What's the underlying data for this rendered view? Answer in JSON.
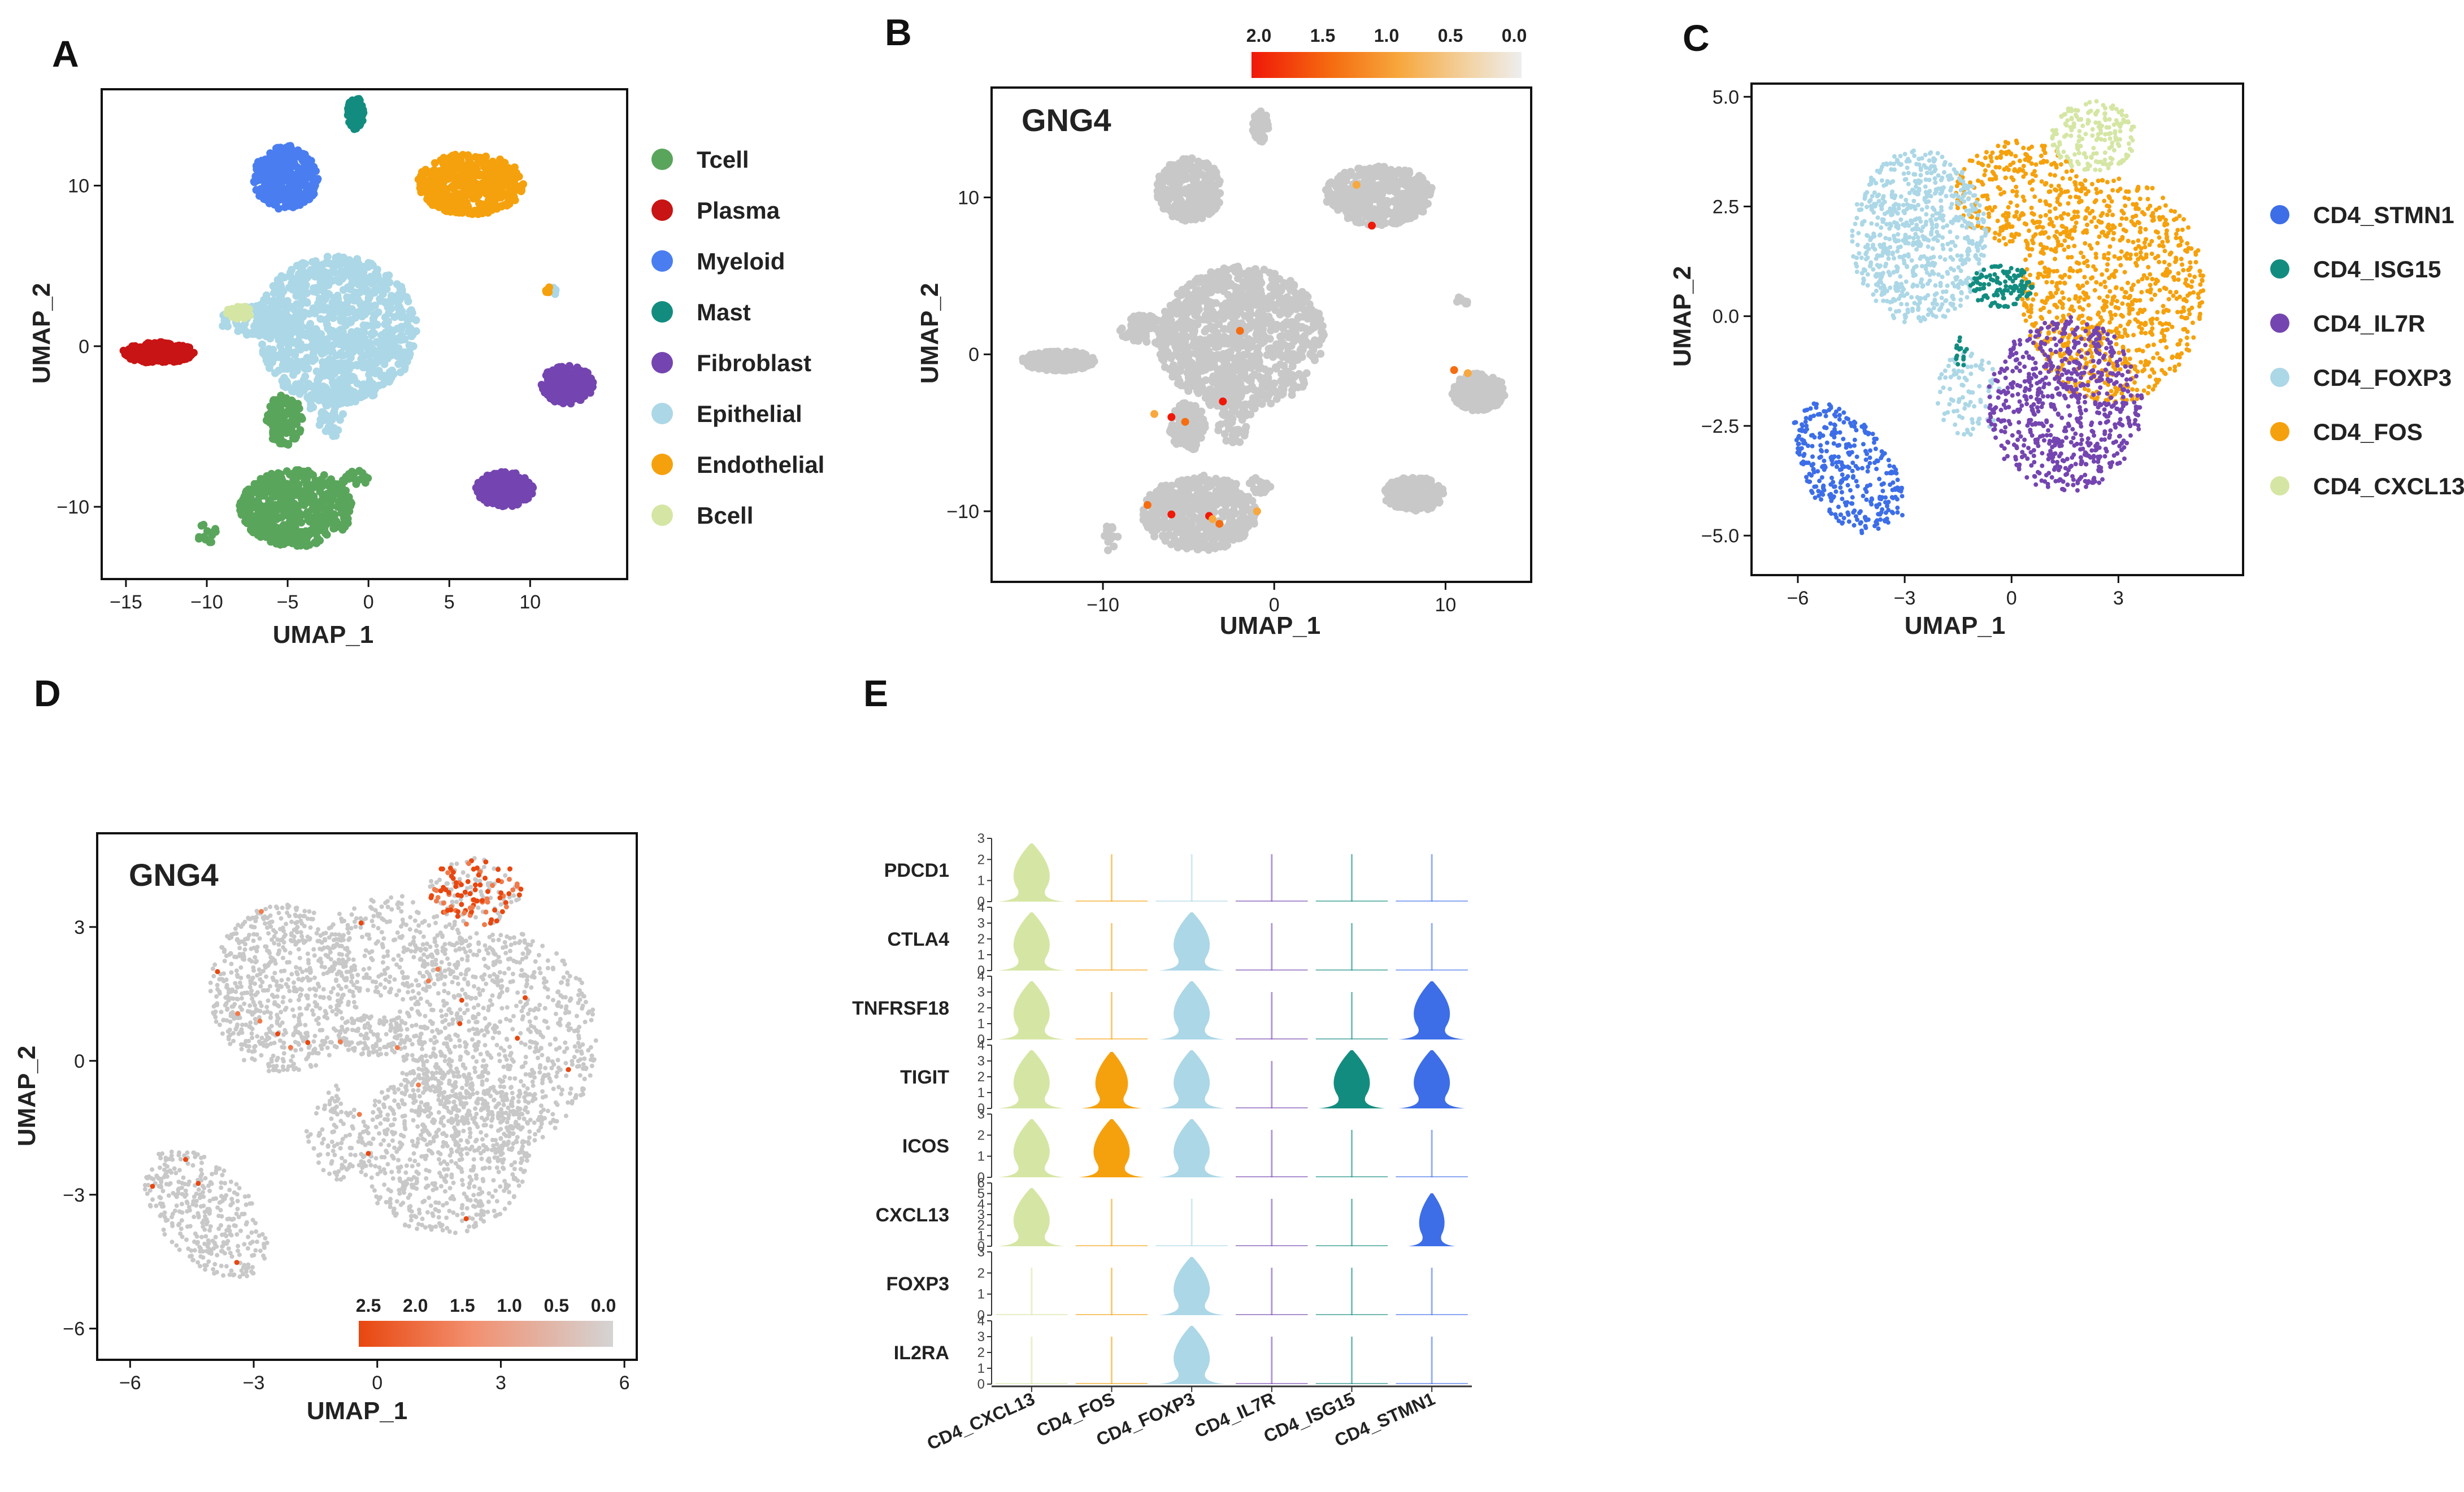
{
  "panel_labels": {
    "A": "A",
    "B": "B",
    "C": "C",
    "D": "D",
    "E": "E"
  },
  "colors": {
    "Tcell": "#5aa55c",
    "Plasma": "#c81414",
    "Myeloid": "#4a7ef0",
    "Mast": "#138c80",
    "Fibroblast": "#7445b0",
    "Epithelial": "#acd7e6",
    "Endothelial": "#f5a10d",
    "Bcell": "#d5e6a4",
    "CD4_STMN1": "#3d6ee8",
    "CD4_ISG15": "#138c80",
    "CD4_IL7R": "#7445b0",
    "CD4_FOXP3": "#acd7e6",
    "CD4_FOS": "#f5a10d",
    "CD4_CXCL13": "#d5e6a4",
    "grey": "#c8c8c8"
  },
  "chart_data": [
    {
      "id": "A",
      "type": "scatter",
      "title": "",
      "xlabel": "UMAP_1",
      "ylabel": "UMAP_2",
      "xlim": [
        -16.5,
        16
      ],
      "ylim": [
        -14.5,
        16
      ],
      "xticks": [
        -15,
        -10,
        -5,
        0,
        5,
        10
      ],
      "xtick_labels": [
        "−15",
        "−10",
        "−5",
        "0",
        "5",
        "10"
      ],
      "yticks": [
        -10,
        0,
        10
      ],
      "ytick_labels": [
        "−10",
        "0",
        "10"
      ],
      "legend": [
        "Tcell",
        "Plasma",
        "Myeloid",
        "Mast",
        "Fibroblast",
        "Epithelial",
        "Endothelial",
        "Bcell"
      ],
      "clusters": [
        {
          "name": "Epithelial",
          "cx": -2,
          "cy": 1,
          "rx": 5,
          "ry": 4.6,
          "n": 900
        },
        {
          "name": "Epithelial",
          "cx": -7,
          "cy": 1.5,
          "rx": 2.3,
          "ry": 1,
          "n": 90
        },
        {
          "name": "Epithelial",
          "cx": -2.5,
          "cy": -3.6,
          "rx": 1.1,
          "ry": 2.2,
          "n": 80
        },
        {
          "name": "Epithelial",
          "cx": 11.5,
          "cy": 3.4,
          "rx": 0.3,
          "ry": 0.3,
          "n": 6
        },
        {
          "name": "Tcell",
          "cx": -4.5,
          "cy": -10.1,
          "rx": 3.5,
          "ry": 2.4,
          "n": 520
        },
        {
          "name": "Tcell",
          "cx": -5.2,
          "cy": -4.6,
          "rx": 1.1,
          "ry": 1.6,
          "n": 120
        },
        {
          "name": "Tcell",
          "cx": -10,
          "cy": -11.7,
          "rx": 0.6,
          "ry": 0.8,
          "n": 14
        },
        {
          "name": "Tcell",
          "cx": -0.8,
          "cy": -8.3,
          "rx": 0.8,
          "ry": 0.6,
          "n": 20
        },
        {
          "name": "Plasma",
          "cx": -13,
          "cy": -0.4,
          "rx": 2.2,
          "ry": 0.65,
          "n": 220
        },
        {
          "name": "Myeloid",
          "cx": -5.1,
          "cy": 10.5,
          "rx": 2,
          "ry": 2,
          "n": 300
        },
        {
          "name": "Mast",
          "cx": -0.8,
          "cy": 14.5,
          "rx": 0.5,
          "ry": 1,
          "n": 60
        },
        {
          "name": "Endothelial",
          "cx": 6.3,
          "cy": 10.1,
          "rx": 3.3,
          "ry": 1.9,
          "n": 420
        },
        {
          "name": "Endothelial",
          "cx": 11.2,
          "cy": 3.5,
          "rx": 0.25,
          "ry": 0.25,
          "n": 6
        },
        {
          "name": "Fibroblast",
          "cx": 12.3,
          "cy": -2.4,
          "rx": 1.6,
          "ry": 1.2,
          "n": 220
        },
        {
          "name": "Fibroblast",
          "cx": 8.4,
          "cy": -8.9,
          "rx": 1.8,
          "ry": 1.1,
          "n": 200
        },
        {
          "name": "Bcell",
          "cx": -8,
          "cy": 2.1,
          "rx": 0.8,
          "ry": 0.4,
          "n": 40
        }
      ]
    },
    {
      "id": "B",
      "type": "scatter",
      "title": "GNG4",
      "xlabel": "UMAP_1",
      "ylabel": "UMAP_2",
      "xlim": [
        -16.5,
        15
      ],
      "ylim": [
        -14.5,
        17
      ],
      "xticks": [
        -10,
        0,
        10
      ],
      "xtick_labels": [
        "−10",
        "0",
        "10"
      ],
      "yticks": [
        -10,
        0,
        10
      ],
      "ytick_labels": [
        "−10",
        "0",
        "10"
      ],
      "colorbar": {
        "min": 0,
        "max": 2.0,
        "tick_values": [
          2.0,
          1.5,
          1.0,
          0.5,
          0.0
        ],
        "tick_labels": [
          "2.0",
          "1.5",
          "1.0",
          "0.5",
          "0.0"
        ]
      },
      "expressing_cells": [
        [
          -6,
          -4
        ],
        [
          -5.2,
          -4.3
        ],
        [
          -7,
          -3.8
        ],
        [
          -3.8,
          -10.3
        ],
        [
          -3.2,
          -10.8
        ],
        [
          -3.6,
          -10.5
        ],
        [
          -6,
          -10.2
        ],
        [
          -7.4,
          -9.6
        ],
        [
          4.8,
          10.8
        ],
        [
          5.7,
          8.2
        ],
        [
          10.5,
          -1
        ],
        [
          11.3,
          -1.2
        ],
        [
          -3,
          -3
        ],
        [
          -2,
          1.5
        ],
        [
          -1,
          -10
        ]
      ]
    },
    {
      "id": "C",
      "type": "scatter",
      "title": "",
      "xlabel": "UMAP_1",
      "ylabel": "UMAP_2",
      "xlim": [
        -7.3,
        6.5
      ],
      "ylim": [
        -5.9,
        5.3
      ],
      "xticks": [
        -6,
        -3,
        0,
        3
      ],
      "xtick_labels": [
        "−6",
        "−3",
        "0",
        "3"
      ],
      "yticks": [
        5,
        2.5,
        0,
        -2.5,
        -5
      ],
      "ytick_labels": [
        "5.0",
        "2.5",
        "0.0",
        "−2.5",
        "−5.0"
      ],
      "legend": [
        "CD4_STMN1",
        "CD4_ISG15",
        "CD4_IL7R",
        "CD4_FOXP3",
        "CD4_FOS",
        "CD4_CXCL13"
      ]
    },
    {
      "id": "D",
      "type": "scatter",
      "title": "GNG4",
      "xlabel": "UMAP_1",
      "ylabel": "UMAP_2",
      "xlim": [
        -6.8,
        6.3
      ],
      "ylim": [
        -6.7,
        5.1
      ],
      "xticks": [
        -6,
        -3,
        0,
        3,
        6
      ],
      "xtick_labels": [
        "−6",
        "−3",
        "0",
        "3",
        "6"
      ],
      "yticks": [
        3,
        0,
        -3,
        -6
      ],
      "ytick_labels": [
        "3",
        "0",
        "−3",
        "−6"
      ],
      "colorbar": {
        "min": 0,
        "max": 2.5,
        "tick_values": [
          2.5,
          2.0,
          1.5,
          1.0,
          0.5,
          0.0
        ],
        "tick_labels": [
          "2.5",
          "2.0",
          "1.5",
          "1.0",
          "0.5",
          "0.0"
        ]
      }
    },
    {
      "id": "E",
      "type": "violin",
      "title": "",
      "genes": [
        "PDCD1",
        "CTLA4",
        "TNFRSF18",
        "TIGIT",
        "ICOS",
        "CXCL13",
        "FOXP3",
        "IL2RA"
      ],
      "gene_max": [
        3,
        4,
        4,
        4,
        3,
        6,
        3,
        4
      ],
      "categories": [
        "CD4_CXCL13",
        "CD4_FOS",
        "CD4_FOXP3",
        "CD4_IL7R",
        "CD4_ISG15",
        "CD4_STMN1"
      ],
      "expression_level": [
        [
          1.0,
          0.05,
          0.05,
          0.05,
          0.05,
          0.05
        ],
        [
          1.0,
          0.05,
          1.0,
          0.05,
          0.05,
          0.05
        ],
        [
          1.0,
          0.05,
          1.0,
          0.05,
          0.05,
          1.0
        ],
        [
          1.0,
          0.9,
          1.0,
          0.05,
          1.0,
          1.0
        ],
        [
          1.0,
          1.0,
          1.0,
          0.05,
          0.05,
          0.05
        ],
        [
          1.0,
          0.05,
          0.05,
          0.05,
          0.05,
          0.7
        ],
        [
          0.05,
          0.05,
          1.0,
          0.05,
          0.05,
          0.05
        ],
        [
          0.05,
          0.05,
          1.0,
          0.05,
          0.05,
          0.05
        ]
      ]
    }
  ]
}
